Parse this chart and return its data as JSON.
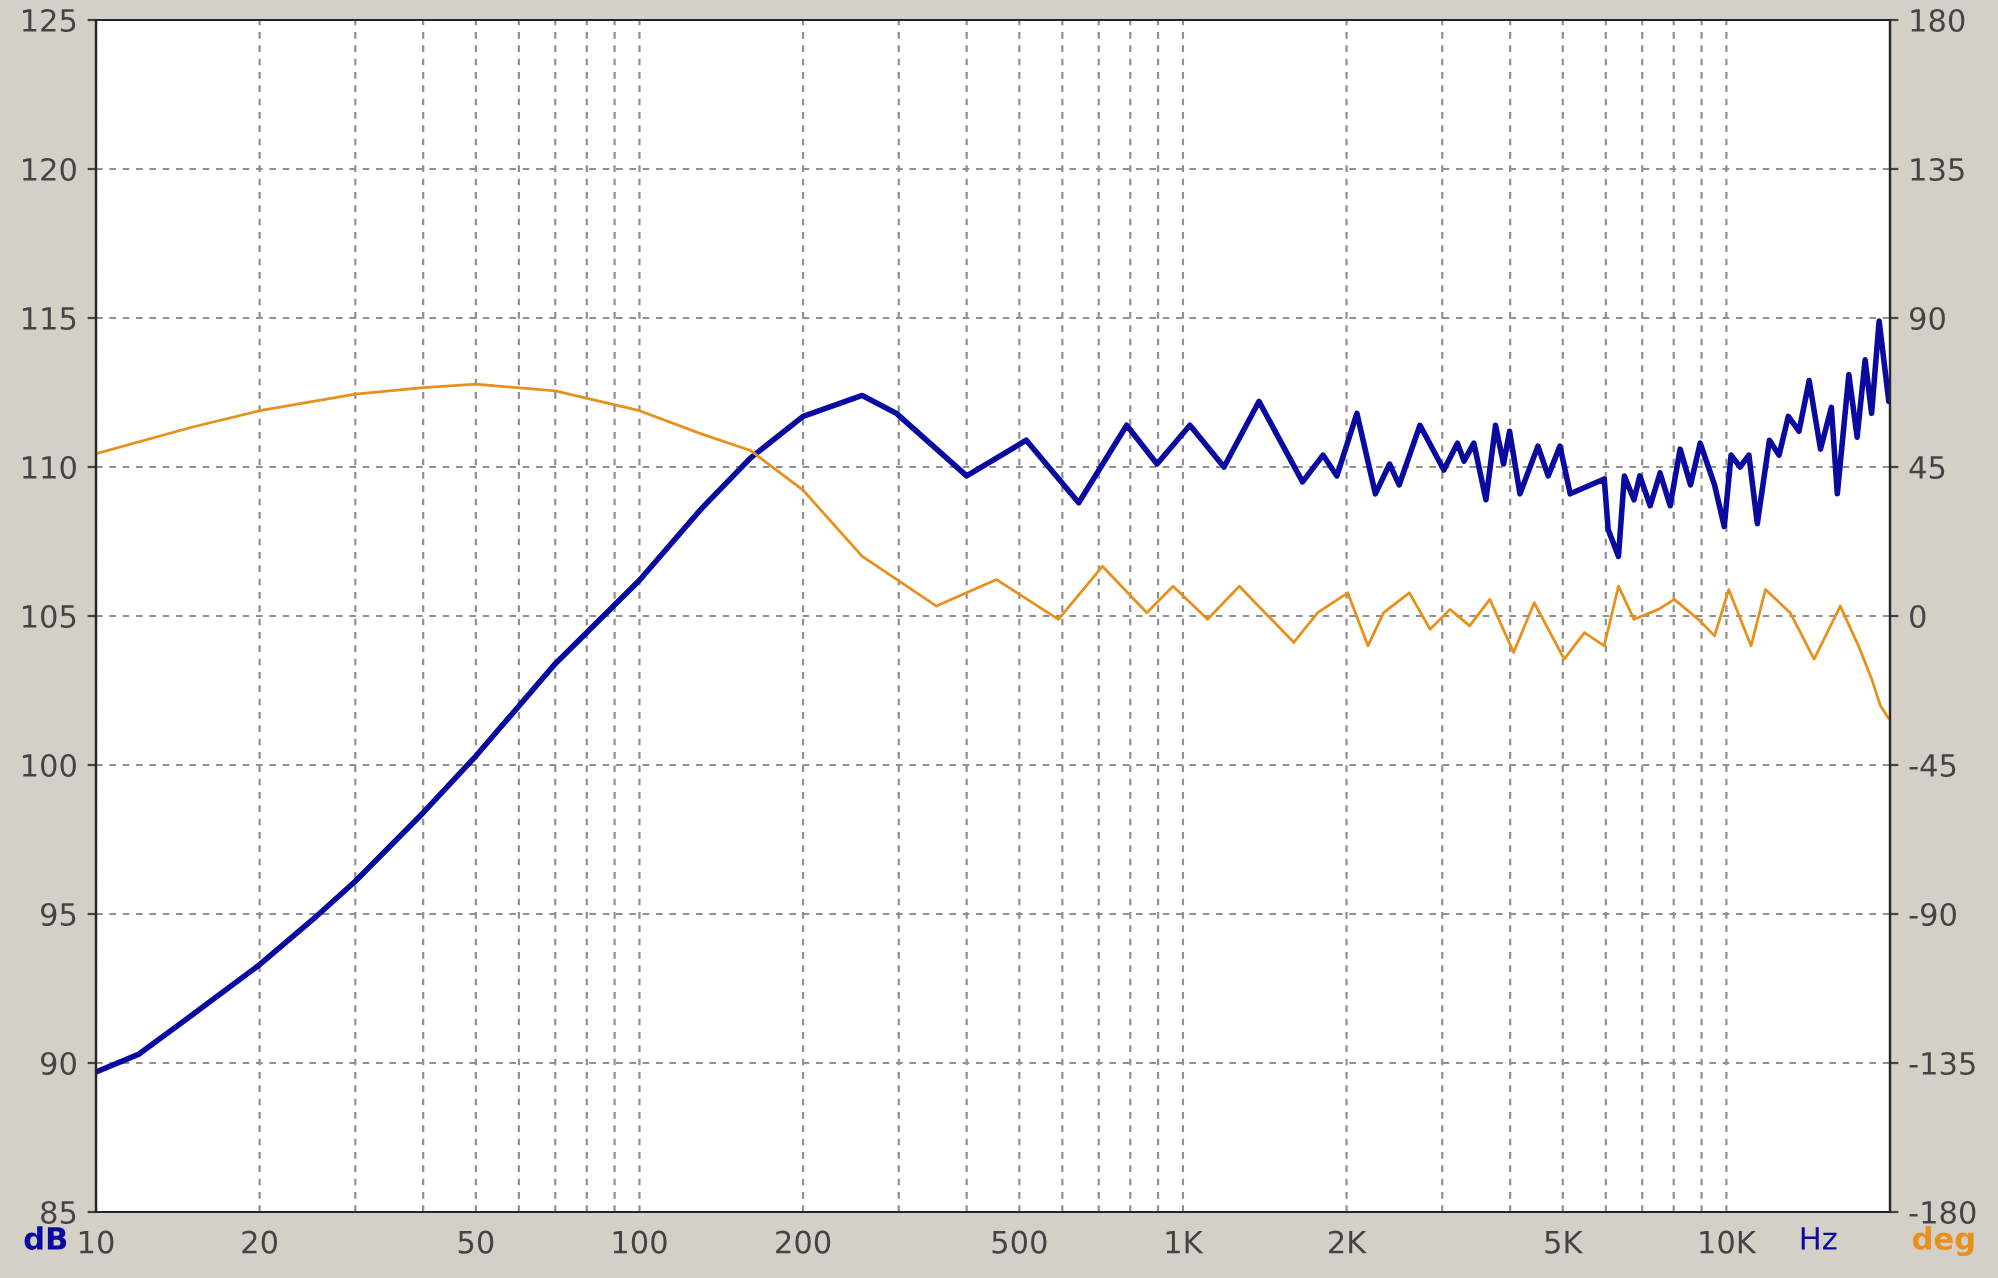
{
  "chart_data": {
    "type": "line",
    "log": "x",
    "grid": true,
    "xlabel": "Hz",
    "ylabel": "dB",
    "y2label": "deg",
    "xlim": [
      10,
      20000
    ],
    "xticks": [
      10,
      20,
      {
        "value": 30,
        "label": null
      },
      {
        "value": 40,
        "label": null
      },
      50,
      {
        "value": 60,
        "label": null
      },
      {
        "value": 70,
        "label": null
      },
      {
        "value": 80,
        "label": null
      },
      {
        "value": 90,
        "label": null
      },
      100,
      200,
      {
        "value": 300,
        "label": null
      },
      {
        "value": 400,
        "label": null
      },
      500,
      {
        "value": 600,
        "label": null
      },
      {
        "value": 700,
        "label": null
      },
      {
        "value": 800,
        "label": null
      },
      {
        "value": 900,
        "label": null
      },
      {
        "value": 1000,
        "label": "1K"
      },
      {
        "value": 2000,
        "label": "2K"
      },
      {
        "value": 3000,
        "label": null
      },
      {
        "value": 4000,
        "label": null
      },
      {
        "value": 5000,
        "label": "5K"
      },
      {
        "value": 6000,
        "label": null
      },
      {
        "value": 7000,
        "label": null
      },
      {
        "value": 8000,
        "label": null
      },
      {
        "value": 9000,
        "label": null
      },
      {
        "value": 10000,
        "label": "10K"
      }
    ],
    "ylim": [
      85,
      125
    ],
    "yticks": [
      85,
      90,
      95,
      100,
      105,
      110,
      115,
      120,
      125
    ],
    "y2lim": [
      -180,
      180
    ],
    "y2ticks": [
      -180,
      -135,
      -90,
      -45,
      0,
      45,
      90,
      135,
      180
    ],
    "series": [
      {
        "color": "#0a0aa0",
        "x": [
          10,
          12,
          15,
          20,
          25,
          30,
          40,
          50,
          70,
          100,
          130,
          160,
          200,
          257,
          297,
          400,
          515,
          643,
          788,
          896,
          1030,
          1190,
          1380,
          1660,
          1810,
          1920,
          2090,
          2260,
          2400,
          2500,
          2730,
          3020,
          3200,
          3290,
          3430,
          3610,
          3760,
          3890,
          3990,
          4170,
          4500,
          4700,
          4940,
          5160,
          5960,
          6060,
          6330,
          6490,
          6760,
          6930,
          7240,
          7550,
          7880,
          8220,
          8590,
          8950,
          9510,
          9910,
          10200,
          10600,
          11000,
          11400,
          12000,
          12500,
          13000,
          13600,
          14200,
          14900,
          15600,
          16000,
          16800,
          17400,
          18000,
          18500,
          19100,
          19900
        ],
        "values": [
          89.7,
          90.3,
          91.6,
          93.3,
          94.8,
          96.1,
          98.4,
          100.3,
          103.4,
          106.2,
          108.6,
          110.3,
          111.7,
          112.4,
          111.8,
          109.7,
          110.9,
          108.8,
          111.4,
          110.1,
          111.4,
          110.0,
          112.2,
          109.5,
          110.4,
          109.7,
          111.8,
          109.1,
          110.1,
          109.4,
          111.4,
          109.9,
          110.8,
          110.2,
          110.8,
          108.9,
          111.4,
          110.1,
          111.2,
          109.1,
          110.7,
          109.7,
          110.7,
          109.1,
          109.6,
          107.9,
          107.0,
          109.7,
          108.9,
          109.7,
          108.7,
          109.8,
          108.7,
          110.6,
          109.4,
          110.8,
          109.4,
          108.0,
          110.4,
          110.0,
          110.4,
          108.1,
          110.9,
          110.4,
          111.7,
          111.2,
          112.9,
          110.6,
          112.0,
          109.1,
          113.1,
          111.0,
          113.6,
          111.8,
          114.9,
          112.2
        ]
      },
      {
        "color": "#e8901c",
        "axis": "y2",
        "x": [
          10,
          15,
          20,
          30,
          40,
          50,
          70,
          100,
          130,
          160,
          200,
          257,
          352,
          454,
          590,
          711,
          858,
          959,
          1110,
          1270,
          1600,
          1770,
          2010,
          2190,
          2340,
          2610,
          2850,
          3100,
          3370,
          3670,
          4060,
          4430,
          5030,
          5480,
          5960,
          6330,
          6760,
          7500,
          8020,
          8880,
          9510,
          10100,
          11100,
          11800,
          13100,
          14500,
          16200,
          17500,
          18500,
          19200,
          19900
        ],
        "values": [
          49,
          57,
          62,
          67,
          69,
          70,
          68,
          62,
          55,
          50,
          38,
          18,
          3,
          11,
          -1,
          15,
          1,
          9,
          -1,
          9,
          -8,
          1,
          7,
          -9,
          1,
          7,
          -4,
          2,
          -3,
          5,
          -11,
          4,
          -13,
          -5,
          -9,
          9,
          -1,
          2,
          5,
          -1,
          -6,
          8,
          -9,
          8,
          1,
          -13,
          3,
          -9,
          -19,
          -27,
          -31
        ]
      }
    ]
  }
}
